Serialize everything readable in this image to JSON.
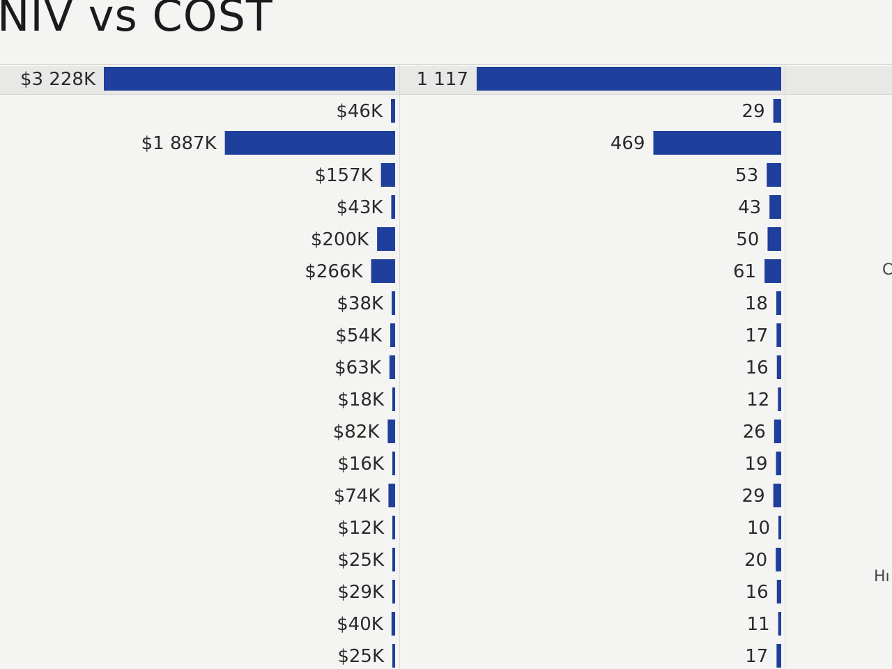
{
  "title": "NIV vs COST",
  "colors": {
    "bar": "#1f3f9c",
    "label": "#2a2a2a",
    "background": "#f4f4f2"
  },
  "edge_text": {
    "mid": "C",
    "lower": "Hı"
  },
  "chart_data": [
    {
      "type": "bar",
      "orientation": "horizontal",
      "direction": "right-to-left",
      "series": [
        {
          "values": [
            3228,
            46,
            1887,
            157,
            43,
            200,
            266,
            38,
            54,
            63,
            18,
            82,
            16,
            74,
            12,
            25,
            29,
            40,
            25
          ],
          "labels": [
            "$3 228K",
            "$46K",
            "$1 887K",
            "$157K",
            "$43K",
            "$200K",
            "$266K",
            "$38K",
            "$54K",
            "$63K",
            "$18K",
            "$82K",
            "$16K",
            "$74K",
            "$12K",
            "$25K",
            "$29K",
            "$40K",
            "$25K"
          ]
        }
      ]
    },
    {
      "type": "bar",
      "orientation": "horizontal",
      "direction": "right-to-left",
      "series": [
        {
          "values": [
            1117,
            29,
            469,
            53,
            43,
            50,
            61,
            18,
            17,
            16,
            12,
            26,
            19,
            29,
            10,
            20,
            16,
            11,
            17
          ],
          "labels": [
            "1 117",
            "29",
            "469",
            "53",
            "43",
            "50",
            "61",
            "18",
            "17",
            "16",
            "12",
            "26",
            "19",
            "29",
            "10",
            "20",
            "16",
            "11",
            "17"
          ]
        }
      ]
    }
  ]
}
